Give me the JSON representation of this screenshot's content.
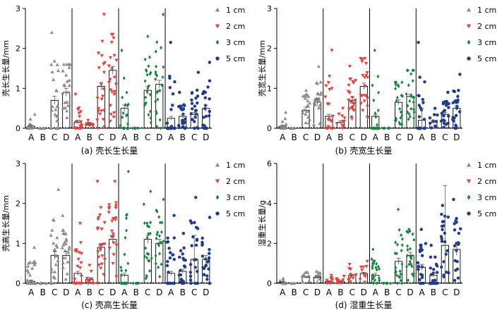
{
  "colors": {
    "1 cm": "#8c8c8c",
    "2 cm": "#e8403c",
    "3 cm": "#14843c",
    "5 cm": "#1f3c8c"
  },
  "chart_data": [
    {
      "type": "bar",
      "title": "(a) 壳长生长量",
      "ylabel": "壳长生长量/mm",
      "ylim": [
        0,
        3
      ],
      "yticks": [
        0,
        1,
        2,
        3
      ],
      "categories": [
        "A",
        "B",
        "C",
        "D"
      ],
      "legend_position": "right",
      "series": [
        {
          "name": "1 cm",
          "marker": "triangle-up",
          "values": [
            0.05,
            0,
            0.7,
            0.9
          ],
          "errors": [
            0.03,
            0,
            0.1,
            0.1
          ],
          "max": [
            0.35,
            0,
            2.4,
            1.6
          ]
        },
        {
          "name": "2 cm",
          "marker": "triangle-down",
          "values": [
            0.15,
            0.08,
            1.05,
            1.45
          ],
          "errors": [
            0.05,
            0.03,
            0.1,
            0.1
          ],
          "max": [
            0.85,
            0.2,
            2.85,
            2.35
          ]
        },
        {
          "name": "3 cm",
          "marker": "diamond",
          "values": [
            0.5,
            0,
            0.95,
            1.1
          ],
          "errors": [
            0.08,
            0,
            0.1,
            0.1
          ],
          "max": [
            1.95,
            0,
            2.3,
            2.85
          ]
        },
        {
          "name": "5 cm",
          "marker": "circle",
          "values": [
            0.25,
            0.3,
            0.35,
            0.5
          ],
          "errors": [
            0.05,
            0.05,
            0.05,
            0.08
          ],
          "max": [
            2.15,
            0.9,
            1.4,
            1.65
          ]
        }
      ]
    },
    {
      "type": "bar",
      "title": "(b) 壳宽生长量",
      "ylabel": "壳宽生长量/mm",
      "ylim": [
        0,
        3
      ],
      "yticks": [
        0,
        1,
        2,
        3
      ],
      "categories": [
        "A",
        "B",
        "C",
        "D"
      ],
      "legend_position": "right",
      "series": [
        {
          "name": "1 cm",
          "marker": "triangle-up",
          "values": [
            0.05,
            0,
            0.45,
            0.65
          ],
          "errors": [
            0.03,
            0,
            0.08,
            0.08
          ],
          "max": [
            0.4,
            0,
            0.95,
            1.55
          ]
        },
        {
          "name": "2 cm",
          "marker": "triangle-down",
          "values": [
            0.3,
            0.15,
            0.7,
            1.05
          ],
          "errors": [
            0.05,
            0.04,
            0.08,
            0.08
          ],
          "max": [
            1.95,
            0.5,
            1.55,
            1.75
          ]
        },
        {
          "name": "3 cm",
          "marker": "diamond",
          "values": [
            0.3,
            0,
            0.65,
            0.8
          ],
          "errors": [
            0.05,
            0,
            0.06,
            0.06
          ],
          "max": [
            1.95,
            0,
            1.15,
            1.45
          ]
        },
        {
          "name": "5 cm",
          "marker": "circle",
          "values": [
            0.2,
            0.15,
            0.35,
            0.5
          ],
          "errors": [
            0.3,
            0.05,
            0.05,
            0.06
          ],
          "max": [
            2.15,
            0.5,
            0.9,
            1.35
          ]
        }
      ]
    },
    {
      "type": "bar",
      "title": "(c) 壳高生长量",
      "ylabel": "壳高生长量/mm",
      "ylim": [
        0,
        3
      ],
      "yticks": [
        0,
        1,
        2,
        3
      ],
      "categories": [
        "A",
        "B",
        "C",
        "D"
      ],
      "legend_position": "right",
      "series": [
        {
          "name": "1 cm",
          "marker": "triangle-up",
          "values": [
            0.05,
            0,
            0.7,
            0.7
          ],
          "errors": [
            0.03,
            0,
            0.1,
            0.1
          ],
          "max": [
            0.9,
            0,
            2.35,
            1.7
          ]
        },
        {
          "name": "2 cm",
          "marker": "triangle-down",
          "values": [
            0.25,
            0.1,
            0.9,
            1.1
          ],
          "errors": [
            0.05,
            0.04,
            0.1,
            0.1
          ],
          "max": [
            1.5,
            0.45,
            2.55,
            2.55
          ]
        },
        {
          "name": "3 cm",
          "marker": "diamond",
          "values": [
            0.2,
            0,
            1.1,
            1.0
          ],
          "errors": [
            0.05,
            0,
            0.1,
            0.1
          ],
          "max": [
            2.8,
            0,
            2.3,
            2.1
          ]
        },
        {
          "name": "5 cm",
          "marker": "circle",
          "values": [
            0.25,
            0.3,
            0.6,
            0.6
          ],
          "errors": [
            0.05,
            0.05,
            0.6,
            0.1
          ],
          "max": [
            1.7,
            1.25,
            2.15,
            1.65
          ]
        }
      ]
    },
    {
      "type": "bar",
      "title": "(d) 湿重生长量",
      "ylabel": "湿重生长量/g",
      "ylim": [
        0,
        6
      ],
      "yticks": [
        0,
        2,
        4,
        6
      ],
      "categories": [
        "A",
        "B",
        "C",
        "D"
      ],
      "legend_position": "right",
      "series": [
        {
          "name": "1 cm",
          "marker": "triangle-up",
          "values": [
            0.05,
            0,
            0.3,
            0.3
          ],
          "errors": [
            0.03,
            0,
            0.05,
            0.05
          ],
          "max": [
            0.25,
            0,
            0.55,
            0.6
          ]
        },
        {
          "name": "2 cm",
          "marker": "triangle-down",
          "values": [
            0.1,
            0.1,
            0.4,
            0.5
          ],
          "errors": [
            0.03,
            0.03,
            0.05,
            0.05
          ],
          "max": [
            0.4,
            0.35,
            0.95,
            1.1
          ]
        },
        {
          "name": "3 cm",
          "marker": "diamond",
          "values": [
            0.4,
            0,
            1.1,
            1.4
          ],
          "errors": [
            0.1,
            0,
            0.15,
            0.15
          ],
          "max": [
            1.7,
            0,
            3.7,
            2.7
          ]
        },
        {
          "name": "5 cm",
          "marker": "circle",
          "values": [
            0.8,
            0.4,
            1.9,
            1.7
          ],
          "errors": [
            0.15,
            0.1,
            3.0,
            0.3
          ],
          "max": [
            2.7,
            1.9,
            3.9,
            4.2
          ]
        }
      ]
    }
  ]
}
